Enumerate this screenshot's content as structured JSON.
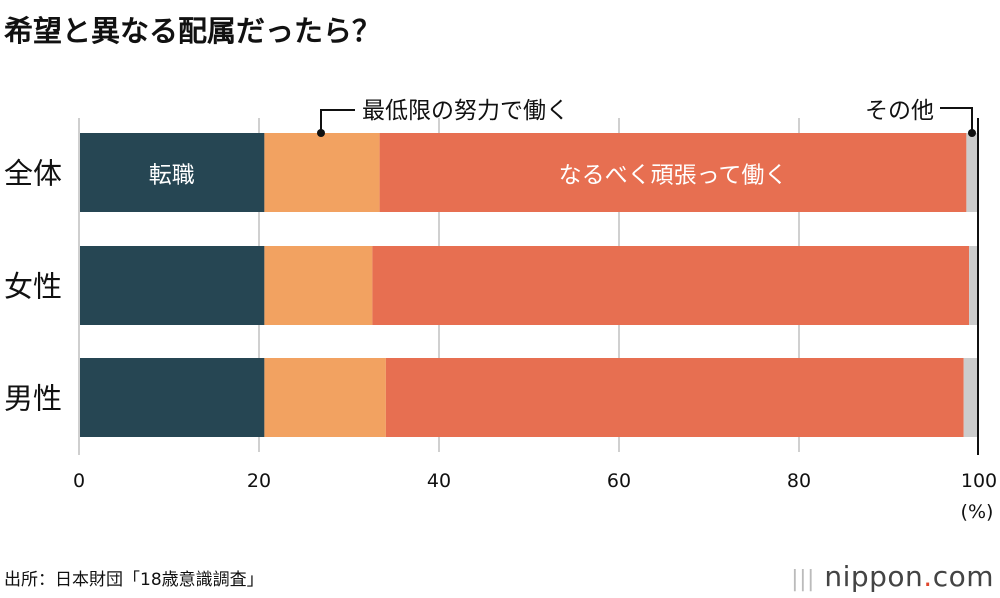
{
  "title": "希望と異なる配属だったら？",
  "source": "出所：日本財団「18歳意識調査」",
  "logo": {
    "prefix": "nippon",
    "dot": ".",
    "suffix": "com"
  },
  "chart_data": {
    "type": "bar",
    "orientation": "horizontal",
    "stacked": true,
    "categories": [
      "全体",
      "女性",
      "男性"
    ],
    "series": [
      {
        "name": "転職",
        "color": "#264653",
        "values": [
          20.6,
          20.6,
          20.6
        ]
      },
      {
        "name": "最低限の努力で働く",
        "color": "#f2a261",
        "values": [
          12.8,
          12.0,
          13.5
        ]
      },
      {
        "name": "なるべく頑張って働く",
        "color": "#e76f51",
        "values": [
          65.2,
          66.3,
          64.2
        ]
      },
      {
        "name": "その他",
        "color": "#cccccc",
        "values": [
          1.4,
          1.1,
          1.7
        ]
      }
    ],
    "xlim": [
      0,
      100
    ],
    "xticks": [
      "0",
      "20",
      "40",
      "60",
      "80",
      "100"
    ],
    "xunit": "(%)",
    "grid": true,
    "legend": "inline labels"
  }
}
